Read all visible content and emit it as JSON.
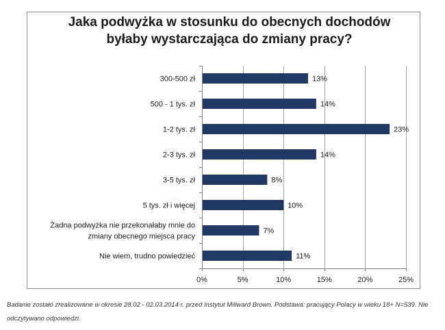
{
  "chart_data": {
    "type": "bar",
    "orientation": "horizontal",
    "title_lines": [
      "Jaka podwyżka w stosunku do obecnych dochodów",
      "byłaby wystarczająca do zmiany  pracy?"
    ],
    "categories": [
      [
        "300-500 zł"
      ],
      [
        "500 - 1 tys. zł"
      ],
      [
        "1-2 tys. zł"
      ],
      [
        "2-3 tys. zł"
      ],
      [
        "3-5 tys. zł"
      ],
      [
        "5 tys. zł i więcej"
      ],
      [
        "Żadna podwyżka nie przekonałaby mnie do",
        "zmiany obecnego miejsca pracy"
      ],
      [
        "Nie wiem, trudno powiedzieć"
      ]
    ],
    "values": [
      13,
      14,
      23,
      14,
      8,
      10,
      7,
      11
    ],
    "value_labels": [
      "13%",
      "14%",
      "23%",
      "14%",
      "8%",
      "10%",
      "7%",
      "11%"
    ],
    "xlim": [
      0,
      25
    ],
    "x_ticks": [
      0,
      5,
      10,
      15,
      20,
      25
    ],
    "x_tick_labels": [
      "0%",
      "5%",
      "10%",
      "15%",
      "20%",
      "25%"
    ],
    "grid": true,
    "bar_color": "#1f3864",
    "grid_color": "#a6a6a6"
  },
  "footnote": "Badanie zostało zrealizowane w okresie 28.02 - 02.03.2014 r. przed Instytut Millward Brown. Podstawa: pracujący Polacy w wieku 18+ N=539. Nie odczytywano odpowiedzi."
}
